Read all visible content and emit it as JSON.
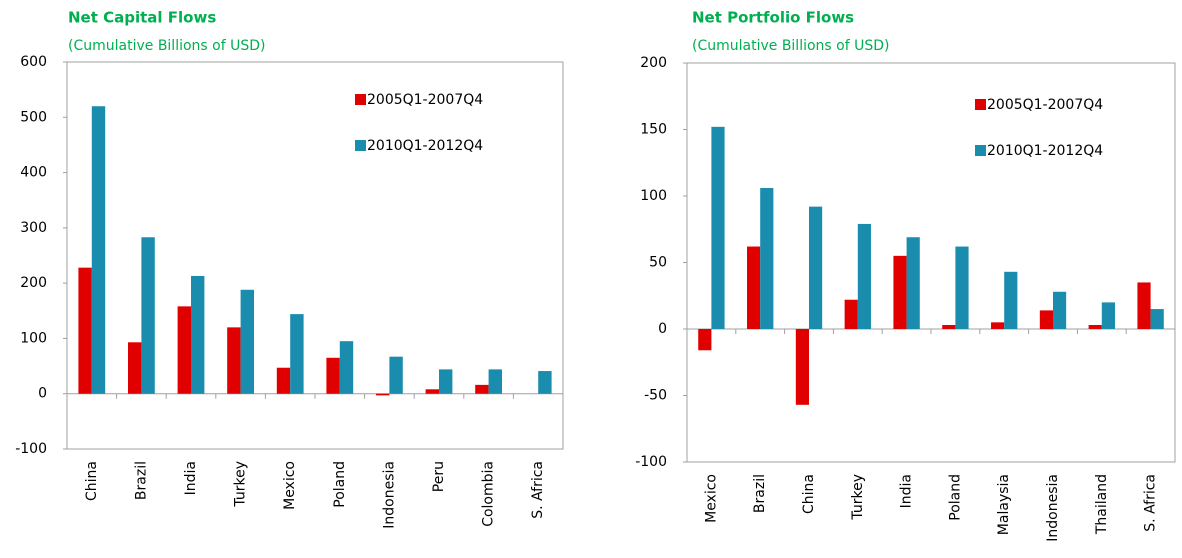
{
  "chart_data": [
    {
      "type": "bar",
      "title": "Net Capital Flows",
      "subtitle": "(Cumulative Billions  of USD)",
      "categories": [
        "China",
        "Brazil",
        "India",
        "Turkey",
        "Mexico",
        "Poland",
        "Indonesia",
        "Peru",
        "Colombia",
        "S. Africa"
      ],
      "series": [
        {
          "name": "2005Q1-2007Q4",
          "color": "#e00000",
          "values": [
            228,
            93,
            158,
            120,
            47,
            65,
            -3,
            8,
            16,
            0
          ]
        },
        {
          "name": "2010Q1-2012Q4",
          "color": "#1a8cad",
          "values": [
            520,
            283,
            213,
            188,
            144,
            95,
            67,
            44,
            44,
            41
          ]
        }
      ],
      "ylim": [
        -100,
        600
      ],
      "yticks": [
        -100,
        0,
        100,
        200,
        300,
        400,
        500,
        600
      ],
      "grid": false,
      "legend": "upper right"
    },
    {
      "type": "bar",
      "title": "Net Portfolio Flows",
      "subtitle": "(Cumulative Billions  of USD)",
      "categories": [
        "Mexico",
        "Brazil",
        "China",
        "Turkey",
        "India",
        "Poland",
        "Malaysia",
        "Indonesia",
        "Thailand",
        "S. Africa"
      ],
      "series": [
        {
          "name": "2005Q1-2007Q4",
          "color": "#e00000",
          "values": [
            -16,
            62,
            -57,
            22,
            55,
            3,
            5,
            14,
            3,
            35
          ]
        },
        {
          "name": "2010Q1-2012Q4",
          "color": "#1a8cad",
          "values": [
            152,
            106,
            92,
            79,
            69,
            62,
            43,
            28,
            20,
            15
          ]
        }
      ],
      "ylim": [
        -100,
        200
      ],
      "yticks": [
        -100,
        -50,
        0,
        50,
        100,
        150,
        200
      ],
      "grid": false,
      "legend": "upper right"
    }
  ]
}
